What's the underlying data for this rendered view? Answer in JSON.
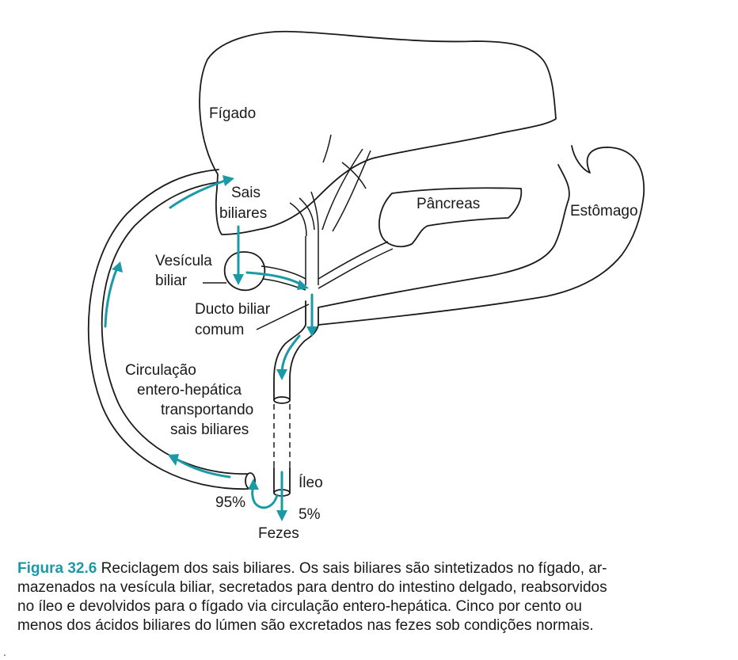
{
  "figure": {
    "labels": {
      "liver": "Fígado",
      "bile_salts_line1": "Sais",
      "bile_salts_line2": "biliares",
      "pancreas": "Pâncreas",
      "stomach": "Estômago",
      "gallbladder_line1": "Vesícula",
      "gallbladder_line2": "biliar",
      "duct_line1": "Ducto biliar",
      "duct_line2": "comum",
      "circulation_line1": "Circulação",
      "circulation_line2": "entero-hepática",
      "circulation_line3": "transportando",
      "circulation_line4": "sais biliares",
      "ileum": "Íleo",
      "percent_reabsorbed": "95%",
      "percent_excreted": "5%",
      "feces": "Fezes"
    },
    "colors": {
      "flow": "#1a9aa6",
      "outline": "#1a1a1a"
    }
  },
  "caption": {
    "figure_label": "Figura 32.6",
    "line1": "Reciclagem dos sais biliares. Os sais biliares são sintetizados no fígado, ar-",
    "line2": "mazenados na vesícula biliar, secretados para dentro do intestino delgado, reabsorvidos",
    "line3": "no íleo e devolvidos para o fígado via circulação entero-hepática. Cinco por cento ou",
    "line4": "menos dos ácidos biliares do lúmen são excretados nas fezes sob condições normais."
  }
}
